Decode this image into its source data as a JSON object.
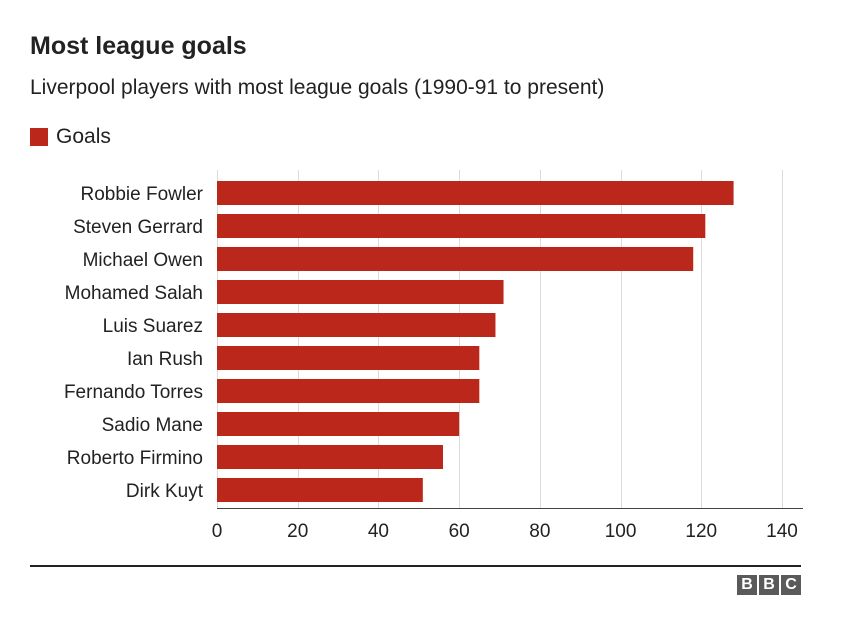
{
  "chart_data": {
    "type": "bar",
    "orientation": "horizontal",
    "title": "Most league goals",
    "subtitle": "Liverpool players with most league goals (1990-91 to present)",
    "categories": [
      "Robbie Fowler",
      "Steven Gerrard",
      "Michael Owen",
      "Mohamed Salah",
      "Luis Suarez",
      "Ian Rush",
      "Fernando Torres",
      "Sadio Mane",
      "Roberto Firmino",
      "Dirk Kuyt"
    ],
    "series": [
      {
        "name": "Goals",
        "values": [
          128,
          121,
          118,
          71,
          69,
          65,
          65,
          60,
          56,
          51
        ]
      }
    ],
    "xlim": [
      0,
      140
    ],
    "xticks": [
      0,
      20,
      40,
      60,
      80,
      100,
      120,
      140
    ],
    "grid": true,
    "legend": "top-left",
    "bar_color": "#bb271a"
  },
  "source": {
    "logo_letters": [
      "B",
      "B",
      "C"
    ]
  }
}
